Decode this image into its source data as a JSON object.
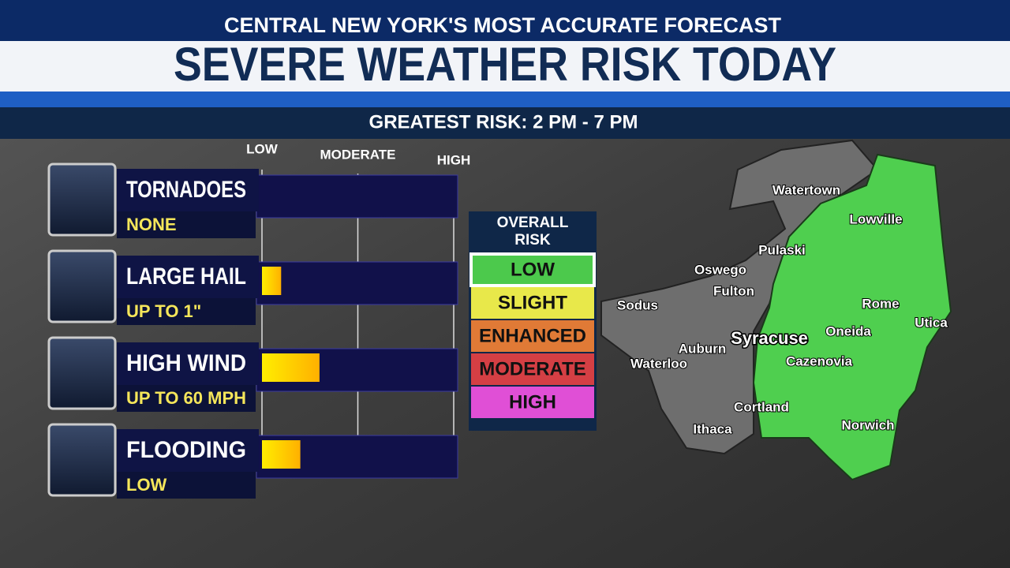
{
  "header": {
    "tagline": "CENTRAL NEW YORK'S MOST ACCURATE FORECAST",
    "title": "SEVERE WEATHER RISK TODAY",
    "subtitle": "GREATEST RISK: 2 PM - 7 PM"
  },
  "risk_scale": {
    "ticks": [
      {
        "value": 0,
        "label": "LOW"
      },
      {
        "value": 1,
        "label": "MODERATE"
      },
      {
        "value": 2,
        "label": "HIGH"
      }
    ]
  },
  "hazards": [
    {
      "name": "TORNADOES",
      "detail": "NONE",
      "risk": 0
    },
    {
      "name": "LARGE HAIL",
      "detail": "UP TO 1\"",
      "risk": 0.2
    },
    {
      "name": "HIGH WIND",
      "detail": "UP TO 60 MPH",
      "risk": 0.6
    },
    {
      "name": "FLOODING",
      "detail": "LOW",
      "risk": 0.4
    }
  ],
  "overall_risk": {
    "title_lines": [
      "OVERALL",
      "RISK"
    ],
    "levels": [
      {
        "label": "LOW",
        "color": "#4cc94c"
      },
      {
        "label": "SLIGHT",
        "color": "#e8e84a"
      },
      {
        "label": "ENHANCED",
        "color": "#e07a36"
      },
      {
        "label": "MODERATE",
        "color": "#d43f44"
      },
      {
        "label": "HIGH",
        "color": "#e04fd6"
      }
    ],
    "current": 0
  },
  "map": {
    "cities": [
      "Watertown",
      "Lowville",
      "Pulaski",
      "Oswego",
      "Fulton",
      "Sodus",
      "Rome",
      "Utica",
      "Syracuse",
      "Oneida",
      "Auburn",
      "Cazenovia",
      "Waterloo",
      "Cortland",
      "Norwich",
      "Ithaca"
    ]
  }
}
